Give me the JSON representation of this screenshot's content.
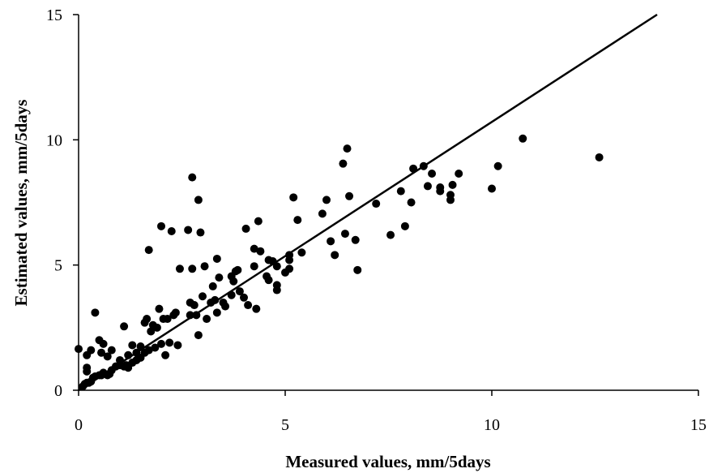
{
  "chart_data": {
    "type": "scatter",
    "title": "",
    "xlabel": "Measured values, mm/5days",
    "ylabel": "Estimated values, mm/5days",
    "xlim": [
      0,
      15
    ],
    "ylim": [
      0,
      15
    ],
    "xticks": [
      0,
      5,
      10,
      15
    ],
    "yticks": [
      0,
      5,
      10,
      15
    ],
    "grid": false,
    "legend": "none",
    "colors": {
      "marker": "#000000",
      "line": "#000000",
      "axis": "#000000"
    },
    "reference_line": {
      "x": [
        0,
        14
      ],
      "y": [
        0,
        15
      ]
    },
    "points": [
      [
        0.0,
        1.65
      ],
      [
        0.1,
        0.15
      ],
      [
        0.15,
        0.25
      ],
      [
        0.2,
        0.3
      ],
      [
        0.25,
        0.3
      ],
      [
        0.3,
        0.35
      ],
      [
        0.35,
        0.5
      ],
      [
        0.4,
        0.55
      ],
      [
        0.5,
        0.6
      ],
      [
        0.55,
        0.6
      ],
      [
        0.6,
        0.7
      ],
      [
        0.7,
        0.6
      ],
      [
        0.75,
        0.65
      ],
      [
        0.8,
        0.8
      ],
      [
        0.9,
        0.95
      ],
      [
        1.0,
        1.0
      ],
      [
        1.1,
        0.95
      ],
      [
        1.15,
        1.0
      ],
      [
        1.2,
        0.9
      ],
      [
        1.3,
        1.1
      ],
      [
        1.4,
        1.2
      ],
      [
        1.5,
        1.3
      ],
      [
        1.6,
        1.5
      ],
      [
        1.7,
        1.6
      ],
      [
        0.2,
        0.9
      ],
      [
        0.2,
        1.4
      ],
      [
        0.2,
        0.75
      ],
      [
        0.3,
        1.6
      ],
      [
        0.4,
        3.1
      ],
      [
        0.5,
        2.0
      ],
      [
        0.55,
        1.5
      ],
      [
        0.6,
        1.85
      ],
      [
        0.7,
        1.35
      ],
      [
        0.8,
        1.6
      ],
      [
        1.0,
        1.2
      ],
      [
        1.1,
        2.55
      ],
      [
        1.2,
        1.4
      ],
      [
        1.3,
        1.8
      ],
      [
        1.4,
        1.5
      ],
      [
        1.5,
        1.75
      ],
      [
        1.6,
        2.7
      ],
      [
        1.65,
        2.85
      ],
      [
        1.7,
        5.6
      ],
      [
        1.75,
        2.35
      ],
      [
        1.8,
        2.6
      ],
      [
        1.85,
        1.7
      ],
      [
        1.9,
        2.5
      ],
      [
        1.95,
        3.25
      ],
      [
        2.0,
        1.85
      ],
      [
        2.0,
        6.55
      ],
      [
        2.05,
        2.85
      ],
      [
        2.1,
        1.4
      ],
      [
        2.15,
        2.85
      ],
      [
        2.2,
        1.9
      ],
      [
        2.25,
        6.35
      ],
      [
        2.3,
        3.0
      ],
      [
        2.35,
        3.1
      ],
      [
        2.4,
        1.8
      ],
      [
        2.45,
        4.85
      ],
      [
        2.65,
        6.4
      ],
      [
        2.7,
        3.0
      ],
      [
        2.7,
        3.5
      ],
      [
        2.75,
        4.85
      ],
      [
        2.75,
        8.5
      ],
      [
        2.8,
        3.4
      ],
      [
        2.85,
        3.0
      ],
      [
        2.9,
        2.2
      ],
      [
        2.95,
        6.3
      ],
      [
        2.9,
        7.6
      ],
      [
        3.0,
        3.75
      ],
      [
        3.05,
        4.95
      ],
      [
        3.1,
        2.85
      ],
      [
        3.2,
        3.5
      ],
      [
        3.25,
        4.15
      ],
      [
        3.3,
        3.6
      ],
      [
        3.35,
        5.25
      ],
      [
        3.4,
        4.5
      ],
      [
        3.35,
        3.1
      ],
      [
        3.5,
        3.5
      ],
      [
        3.55,
        3.35
      ],
      [
        3.7,
        4.55
      ],
      [
        3.7,
        3.8
      ],
      [
        3.75,
        4.35
      ],
      [
        3.8,
        4.75
      ],
      [
        3.85,
        4.8
      ],
      [
        3.9,
        3.95
      ],
      [
        4.0,
        3.7
      ],
      [
        4.05,
        6.45
      ],
      [
        4.1,
        3.4
      ],
      [
        4.25,
        4.95
      ],
      [
        4.25,
        5.65
      ],
      [
        4.3,
        3.25
      ],
      [
        4.35,
        6.75
      ],
      [
        4.4,
        5.55
      ],
      [
        4.55,
        4.55
      ],
      [
        4.6,
        5.2
      ],
      [
        4.6,
        4.4
      ],
      [
        4.7,
        5.15
      ],
      [
        4.8,
        4.95
      ],
      [
        4.8,
        4.0
      ],
      [
        4.8,
        4.2
      ],
      [
        5.0,
        4.7
      ],
      [
        5.1,
        4.85
      ],
      [
        5.1,
        5.2
      ],
      [
        5.1,
        5.4
      ],
      [
        5.2,
        7.7
      ],
      [
        5.3,
        6.8
      ],
      [
        5.4,
        5.5
      ],
      [
        5.9,
        7.05
      ],
      [
        6.0,
        7.6
      ],
      [
        6.1,
        5.95
      ],
      [
        6.2,
        5.4
      ],
      [
        6.4,
        9.05
      ],
      [
        6.45,
        6.25
      ],
      [
        6.5,
        9.65
      ],
      [
        6.55,
        7.75
      ],
      [
        6.7,
        6.0
      ],
      [
        6.75,
        4.8
      ],
      [
        7.2,
        7.45
      ],
      [
        7.55,
        6.2
      ],
      [
        7.8,
        7.95
      ],
      [
        7.9,
        6.55
      ],
      [
        8.05,
        7.5
      ],
      [
        8.1,
        8.85
      ],
      [
        8.35,
        8.95
      ],
      [
        8.45,
        8.15
      ],
      [
        8.55,
        8.65
      ],
      [
        8.75,
        8.1
      ],
      [
        8.75,
        7.95
      ],
      [
        9.0,
        7.8
      ],
      [
        9.0,
        7.6
      ],
      [
        9.05,
        8.2
      ],
      [
        9.2,
        8.65
      ],
      [
        10.0,
        8.05
      ],
      [
        10.15,
        8.95
      ],
      [
        10.75,
        10.05
      ],
      [
        12.6,
        9.3
      ]
    ]
  }
}
